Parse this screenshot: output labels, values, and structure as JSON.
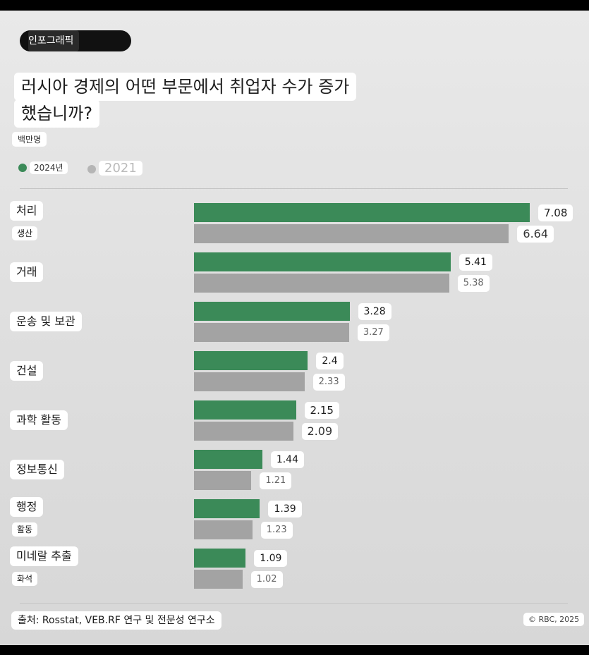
{
  "badge": "인포그래픽",
  "title_line1": "러시아 경제의 어떤 부문에서 취업자 수가 증가",
  "title_line2": "했습니까?",
  "unit": "백만명",
  "legend": {
    "series1": "2024년",
    "series2": "2021",
    "color1": "#3b8a58",
    "color2": "#a3a3a3"
  },
  "chart_data": {
    "type": "bar",
    "orientation": "horizontal",
    "categories": [
      {
        "label": "처리",
        "sublabel": "생산"
      },
      {
        "label": "거래",
        "sublabel": ""
      },
      {
        "label": "운송 및 보관",
        "sublabel": ""
      },
      {
        "label": "건설",
        "sublabel": ""
      },
      {
        "label": "과학 활동",
        "sublabel": ""
      },
      {
        "label": "정보통신",
        "sublabel": ""
      },
      {
        "label": "행정",
        "sublabel": "활동"
      },
      {
        "label": "미네랄 추출",
        "sublabel": "화석"
      }
    ],
    "series": [
      {
        "name": "2024년",
        "values": [
          7.08,
          5.41,
          3.28,
          2.4,
          2.15,
          1.44,
          1.39,
          1.09
        ]
      },
      {
        "name": "2021",
        "values": [
          6.64,
          5.38,
          3.27,
          2.33,
          2.09,
          1.21,
          1.23,
          1.02
        ]
      }
    ],
    "value_labels_2024": [
      "7.08",
      "5.41",
      "3.28",
      "2.4",
      "2.15",
      "1.44",
      "1.39",
      "1.09"
    ],
    "value_labels_2021": [
      "6.64",
      "5.38",
      "3.27",
      "2.33",
      "2.09",
      "1.21",
      "1.23",
      "1.02"
    ],
    "xlim": [
      0,
      7.08
    ],
    "legend_position": "top-left",
    "grid": false
  },
  "source": "출처: Rosstat, VEB.RF 연구 및 전문성 연구소",
  "copyright": "© RBC, 2025"
}
